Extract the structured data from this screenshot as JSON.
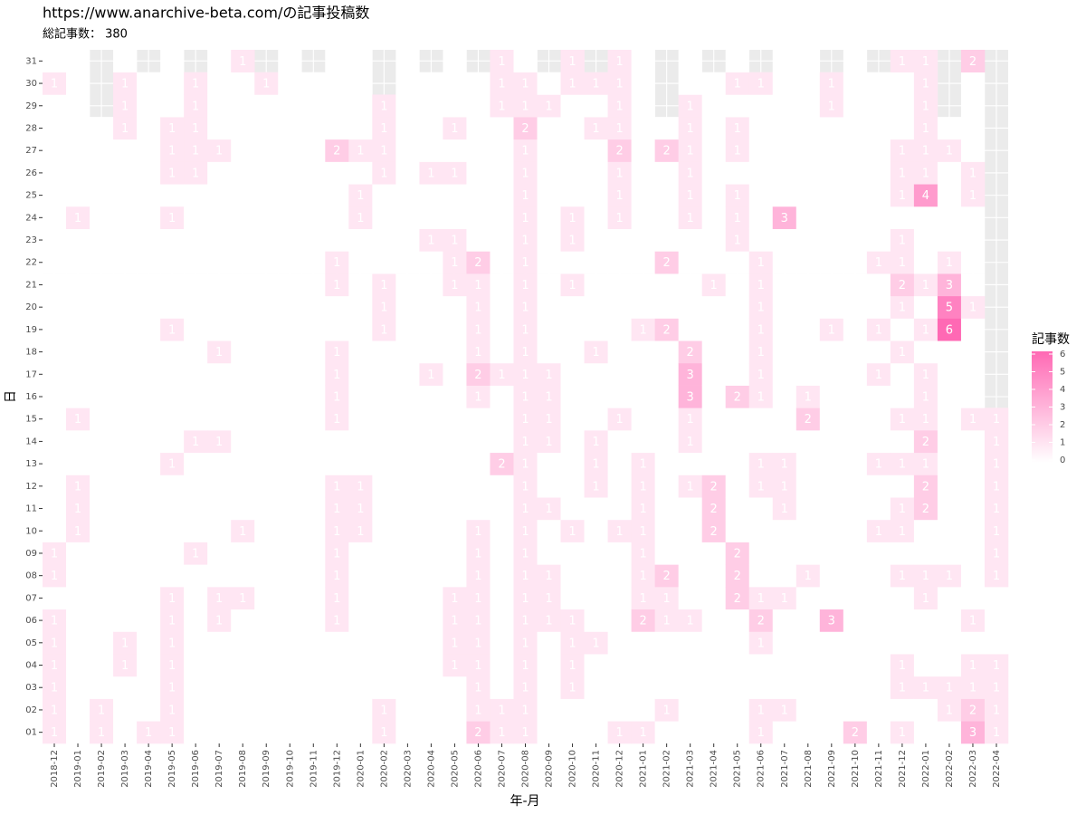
{
  "chart_data": {
    "type": "heatmap",
    "title": "https://www.anarchive-beta.com/の記事投稿数",
    "subtitle": "総記事数： 380",
    "x_label": "年-月",
    "y_label": "日",
    "legend_title": "記事数",
    "x_categories": [
      "2018-12",
      "2019-01",
      "2019-02",
      "2019-03",
      "2019-04",
      "2019-05",
      "2019-06",
      "2019-07",
      "2019-08",
      "2019-09",
      "2019-10",
      "2019-11",
      "2019-12",
      "2020-01",
      "2020-02",
      "2020-03",
      "2020-04",
      "2020-05",
      "2020-06",
      "2020-07",
      "2020-08",
      "2020-09",
      "2020-10",
      "2020-11",
      "2020-12",
      "2021-01",
      "2021-02",
      "2021-03",
      "2021-04",
      "2021-05",
      "2021-06",
      "2021-07",
      "2021-08",
      "2021-09",
      "2021-10",
      "2021-11",
      "2021-12",
      "2022-01",
      "2022-02",
      "2022-03",
      "2022-04"
    ],
    "y_categories": [
      "01",
      "02",
      "03",
      "04",
      "05",
      "06",
      "07",
      "08",
      "09",
      "10",
      "11",
      "12",
      "13",
      "14",
      "15",
      "16",
      "17",
      "18",
      "19",
      "20",
      "21",
      "22",
      "23",
      "24",
      "25",
      "26",
      "27",
      "28",
      "29",
      "30",
      "31"
    ],
    "values": [
      [
        1,
        1,
        1,
        1,
        1,
        1,
        0,
        1,
        1,
        0,
        0,
        0,
        0,
        0,
        0,
        0,
        0,
        0,
        0,
        0,
        0,
        0,
        0,
        0,
        0,
        0,
        0,
        0,
        0,
        1,
        0
      ],
      [
        0,
        0,
        0,
        0,
        0,
        0,
        0,
        0,
        0,
        1,
        1,
        1,
        0,
        0,
        1,
        0,
        0,
        0,
        0,
        0,
        0,
        0,
        0,
        1,
        0,
        0,
        0,
        0,
        0,
        0,
        0
      ],
      [
        1,
        1,
        0,
        0,
        0,
        0,
        0,
        0,
        0,
        0,
        0,
        0,
        0,
        0,
        0,
        0,
        0,
        0,
        0,
        0,
        0,
        0,
        0,
        0,
        0,
        0,
        0,
        0,
        null,
        null,
        null
      ],
      [
        0,
        0,
        0,
        1,
        1,
        0,
        0,
        0,
        0,
        0,
        0,
        0,
        0,
        0,
        0,
        0,
        0,
        0,
        0,
        0,
        0,
        0,
        0,
        0,
        0,
        0,
        0,
        1,
        1,
        1,
        0
      ],
      [
        1,
        0,
        0,
        0,
        0,
        0,
        0,
        0,
        0,
        0,
        0,
        0,
        0,
        0,
        0,
        0,
        0,
        0,
        0,
        0,
        0,
        0,
        0,
        0,
        0,
        0,
        0,
        0,
        0,
        0,
        null
      ],
      [
        1,
        1,
        1,
        1,
        1,
        1,
        1,
        0,
        0,
        0,
        0,
        0,
        1,
        0,
        0,
        0,
        0,
        0,
        1,
        0,
        0,
        0,
        0,
        1,
        0,
        1,
        1,
        1,
        0,
        0,
        0
      ],
      [
        0,
        0,
        0,
        0,
        0,
        0,
        0,
        0,
        1,
        0,
        0,
        0,
        0,
        1,
        0,
        0,
        0,
        0,
        0,
        0,
        0,
        0,
        0,
        0,
        0,
        1,
        1,
        1,
        1,
        1,
        null
      ],
      [
        0,
        0,
        0,
        0,
        0,
        1,
        1,
        0,
        0,
        0,
        0,
        0,
        0,
        1,
        0,
        0,
        0,
        1,
        0,
        0,
        0,
        0,
        0,
        0,
        0,
        0,
        1,
        0,
        0,
        0,
        0
      ],
      [
        0,
        0,
        0,
        0,
        0,
        0,
        1,
        0,
        0,
        1,
        0,
        0,
        0,
        0,
        0,
        0,
        0,
        0,
        0,
        0,
        0,
        0,
        0,
        0,
        0,
        0,
        0,
        0,
        0,
        0,
        1
      ],
      [
        0,
        0,
        0,
        0,
        0,
        0,
        0,
        0,
        0,
        0,
        0,
        0,
        0,
        0,
        0,
        0,
        0,
        0,
        0,
        0,
        0,
        0,
        0,
        0,
        0,
        0,
        0,
        0,
        0,
        1,
        null
      ],
      [
        0,
        0,
        0,
        0,
        0,
        0,
        0,
        0,
        0,
        0,
        0,
        0,
        0,
        0,
        0,
        0,
        0,
        0,
        0,
        0,
        0,
        0,
        0,
        0,
        0,
        0,
        0,
        0,
        0,
        0,
        0
      ],
      [
        0,
        0,
        0,
        0,
        0,
        0,
        0,
        0,
        0,
        0,
        0,
        0,
        0,
        0,
        0,
        0,
        0,
        0,
        0,
        0,
        0,
        0,
        0,
        0,
        0,
        0,
        0,
        0,
        0,
        0,
        null
      ],
      [
        0,
        0,
        0,
        0,
        0,
        1,
        1,
        1,
        1,
        1,
        1,
        1,
        0,
        0,
        1,
        1,
        1,
        1,
        0,
        0,
        1,
        1,
        0,
        0,
        0,
        0,
        2,
        0,
        0,
        0,
        0
      ],
      [
        0,
        0,
        0,
        0,
        0,
        0,
        0,
        0,
        0,
        1,
        1,
        1,
        0,
        0,
        0,
        0,
        0,
        0,
        0,
        0,
        0,
        0,
        0,
        1,
        1,
        0,
        1,
        0,
        0,
        0,
        0
      ],
      [
        1,
        1,
        0,
        0,
        0,
        0,
        0,
        0,
        0,
        0,
        0,
        0,
        0,
        0,
        0,
        0,
        0,
        0,
        1,
        1,
        1,
        0,
        0,
        0,
        0,
        1,
        1,
        1,
        1,
        null,
        null
      ],
      [
        0,
        0,
        0,
        0,
        0,
        0,
        0,
        0,
        0,
        0,
        0,
        0,
        0,
        0,
        0,
        0,
        0,
        0,
        0,
        0,
        0,
        0,
        0,
        0,
        0,
        0,
        0,
        0,
        0,
        0,
        0
      ],
      [
        0,
        0,
        0,
        0,
        0,
        0,
        0,
        0,
        0,
        0,
        0,
        0,
        0,
        0,
        0,
        0,
        1,
        0,
        0,
        0,
        0,
        0,
        1,
        0,
        0,
        1,
        0,
        0,
        0,
        0,
        null
      ],
      [
        0,
        0,
        0,
        1,
        1,
        1,
        1,
        0,
        0,
        0,
        0,
        0,
        0,
        0,
        0,
        0,
        0,
        0,
        0,
        0,
        1,
        1,
        1,
        0,
        0,
        1,
        0,
        1,
        0,
        0,
        0
      ],
      [
        2,
        1,
        1,
        1,
        1,
        1,
        1,
        1,
        1,
        1,
        0,
        0,
        0,
        0,
        0,
        1,
        2,
        1,
        1,
        1,
        1,
        2,
        0,
        0,
        0,
        0,
        0,
        0,
        0,
        0,
        null
      ],
      [
        1,
        1,
        0,
        0,
        0,
        0,
        0,
        0,
        0,
        0,
        0,
        0,
        2,
        0,
        0,
        0,
        1,
        0,
        0,
        0,
        0,
        0,
        0,
        0,
        0,
        0,
        0,
        0,
        1,
        1,
        1
      ],
      [
        1,
        1,
        1,
        1,
        1,
        1,
        1,
        1,
        1,
        1,
        1,
        1,
        1,
        1,
        1,
        1,
        1,
        1,
        1,
        1,
        1,
        1,
        1,
        1,
        1,
        1,
        1,
        2,
        1,
        1,
        0
      ],
      [
        0,
        0,
        0,
        0,
        0,
        1,
        1,
        1,
        0,
        0,
        1,
        0,
        0,
        1,
        1,
        1,
        1,
        0,
        0,
        0,
        0,
        0,
        0,
        0,
        0,
        0,
        0,
        0,
        1,
        0,
        null
      ],
      [
        0,
        0,
        1,
        1,
        1,
        1,
        0,
        0,
        0,
        1,
        0,
        0,
        0,
        0,
        0,
        0,
        0,
        0,
        0,
        0,
        1,
        0,
        1,
        1,
        0,
        0,
        0,
        0,
        0,
        1,
        1
      ],
      [
        0,
        0,
        0,
        0,
        1,
        0,
        0,
        0,
        0,
        0,
        0,
        1,
        1,
        1,
        0,
        0,
        0,
        1,
        0,
        0,
        0,
        0,
        0,
        0,
        0,
        0,
        0,
        1,
        0,
        1,
        null
      ],
      [
        1,
        0,
        0,
        0,
        0,
        0,
        0,
        0,
        0,
        1,
        0,
        0,
        0,
        0,
        1,
        0,
        0,
        0,
        0,
        0,
        0,
        0,
        0,
        1,
        1,
        1,
        2,
        1,
        1,
        1,
        1
      ],
      [
        1,
        0,
        0,
        0,
        0,
        2,
        1,
        1,
        1,
        1,
        1,
        1,
        1,
        0,
        0,
        0,
        0,
        0,
        1,
        0,
        0,
        0,
        0,
        0,
        0,
        0,
        0,
        0,
        0,
        0,
        0
      ],
      [
        0,
        1,
        0,
        0,
        0,
        1,
        1,
        2,
        0,
        0,
        0,
        0,
        0,
        0,
        0,
        0,
        0,
        0,
        2,
        0,
        0,
        2,
        0,
        0,
        0,
        0,
        2,
        0,
        null,
        null,
        null
      ],
      [
        0,
        0,
        0,
        0,
        0,
        1,
        0,
        0,
        0,
        0,
        0,
        1,
        0,
        1,
        1,
        3,
        3,
        2,
        0,
        0,
        0,
        0,
        0,
        1,
        1,
        1,
        1,
        1,
        1,
        0,
        0
      ],
      [
        0,
        0,
        0,
        0,
        0,
        0,
        0,
        0,
        0,
        2,
        2,
        2,
        0,
        0,
        0,
        0,
        0,
        0,
        0,
        0,
        1,
        0,
        0,
        0,
        0,
        0,
        0,
        0,
        0,
        0,
        null
      ],
      [
        0,
        0,
        0,
        0,
        0,
        0,
        2,
        2,
        2,
        0,
        0,
        0,
        0,
        0,
        0,
        2,
        0,
        0,
        0,
        0,
        0,
        0,
        1,
        1,
        1,
        0,
        1,
        1,
        0,
        1,
        0
      ],
      [
        1,
        1,
        0,
        0,
        1,
        2,
        1,
        0,
        0,
        0,
        0,
        1,
        1,
        0,
        0,
        1,
        1,
        1,
        1,
        1,
        1,
        1,
        0,
        0,
        0,
        0,
        0,
        0,
        0,
        1,
        null
      ],
      [
        0,
        1,
        0,
        0,
        0,
        0,
        1,
        0,
        0,
        0,
        1,
        1,
        1,
        0,
        0,
        0,
        0,
        0,
        0,
        0,
        0,
        0,
        0,
        3,
        0,
        0,
        0,
        0,
        0,
        0,
        0
      ],
      [
        0,
        0,
        0,
        0,
        0,
        0,
        0,
        1,
        0,
        0,
        0,
        0,
        0,
        0,
        2,
        1,
        0,
        0,
        0,
        0,
        0,
        0,
        0,
        0,
        0,
        0,
        0,
        0,
        0,
        0,
        0
      ],
      [
        0,
        0,
        0,
        0,
        0,
        3,
        0,
        0,
        0,
        0,
        0,
        0,
        0,
        0,
        0,
        0,
        0,
        0,
        1,
        0,
        0,
        0,
        0,
        0,
        0,
        0,
        0,
        0,
        1,
        1,
        null
      ],
      [
        2,
        0,
        0,
        0,
        0,
        0,
        0,
        0,
        0,
        0,
        0,
        0,
        0,
        0,
        0,
        0,
        0,
        0,
        0,
        0,
        0,
        0,
        0,
        0,
        0,
        0,
        0,
        0,
        0,
        0,
        0
      ],
      [
        0,
        0,
        0,
        0,
        0,
        0,
        0,
        0,
        0,
        1,
        0,
        0,
        1,
        0,
        0,
        0,
        1,
        0,
        1,
        0,
        0,
        1,
        0,
        0,
        0,
        0,
        0,
        0,
        0,
        0,
        null
      ],
      [
        1,
        0,
        1,
        1,
        0,
        0,
        0,
        1,
        0,
        1,
        1,
        0,
        1,
        0,
        1,
        0,
        0,
        1,
        0,
        1,
        2,
        1,
        1,
        0,
        1,
        1,
        1,
        0,
        0,
        0,
        1
      ],
      [
        0,
        0,
        1,
        0,
        0,
        0,
        1,
        1,
        0,
        0,
        2,
        2,
        1,
        2,
        1,
        1,
        1,
        0,
        1,
        0,
        1,
        0,
        0,
        0,
        4,
        1,
        1,
        1,
        1,
        1,
        1
      ],
      [
        0,
        1,
        1,
        0,
        0,
        0,
        0,
        1,
        0,
        0,
        0,
        0,
        0,
        0,
        0,
        0,
        0,
        0,
        6,
        5,
        3,
        1,
        0,
        0,
        0,
        0,
        1,
        0,
        null,
        null,
        null
      ],
      [
        3,
        2,
        1,
        1,
        0,
        1,
        0,
        0,
        0,
        0,
        0,
        0,
        0,
        0,
        1,
        0,
        0,
        0,
        0,
        1,
        0,
        0,
        0,
        0,
        1,
        1,
        0,
        0,
        0,
        0,
        2
      ],
      [
        1,
        1,
        1,
        1,
        0,
        0,
        0,
        1,
        1,
        1,
        1,
        1,
        1,
        1,
        1,
        null,
        null,
        null,
        null,
        null,
        null,
        null,
        null,
        null,
        null,
        null,
        null,
        null,
        null,
        null,
        null
      ]
    ],
    "clim": [
      0,
      6
    ],
    "colorbar_ticks": [
      0,
      1,
      2,
      3,
      4,
      5,
      6
    ],
    "low_color": "#ffffff",
    "high_color": "#ff69b4",
    "panel_color": "#ebebeb",
    "label_color": "#ffffff"
  }
}
